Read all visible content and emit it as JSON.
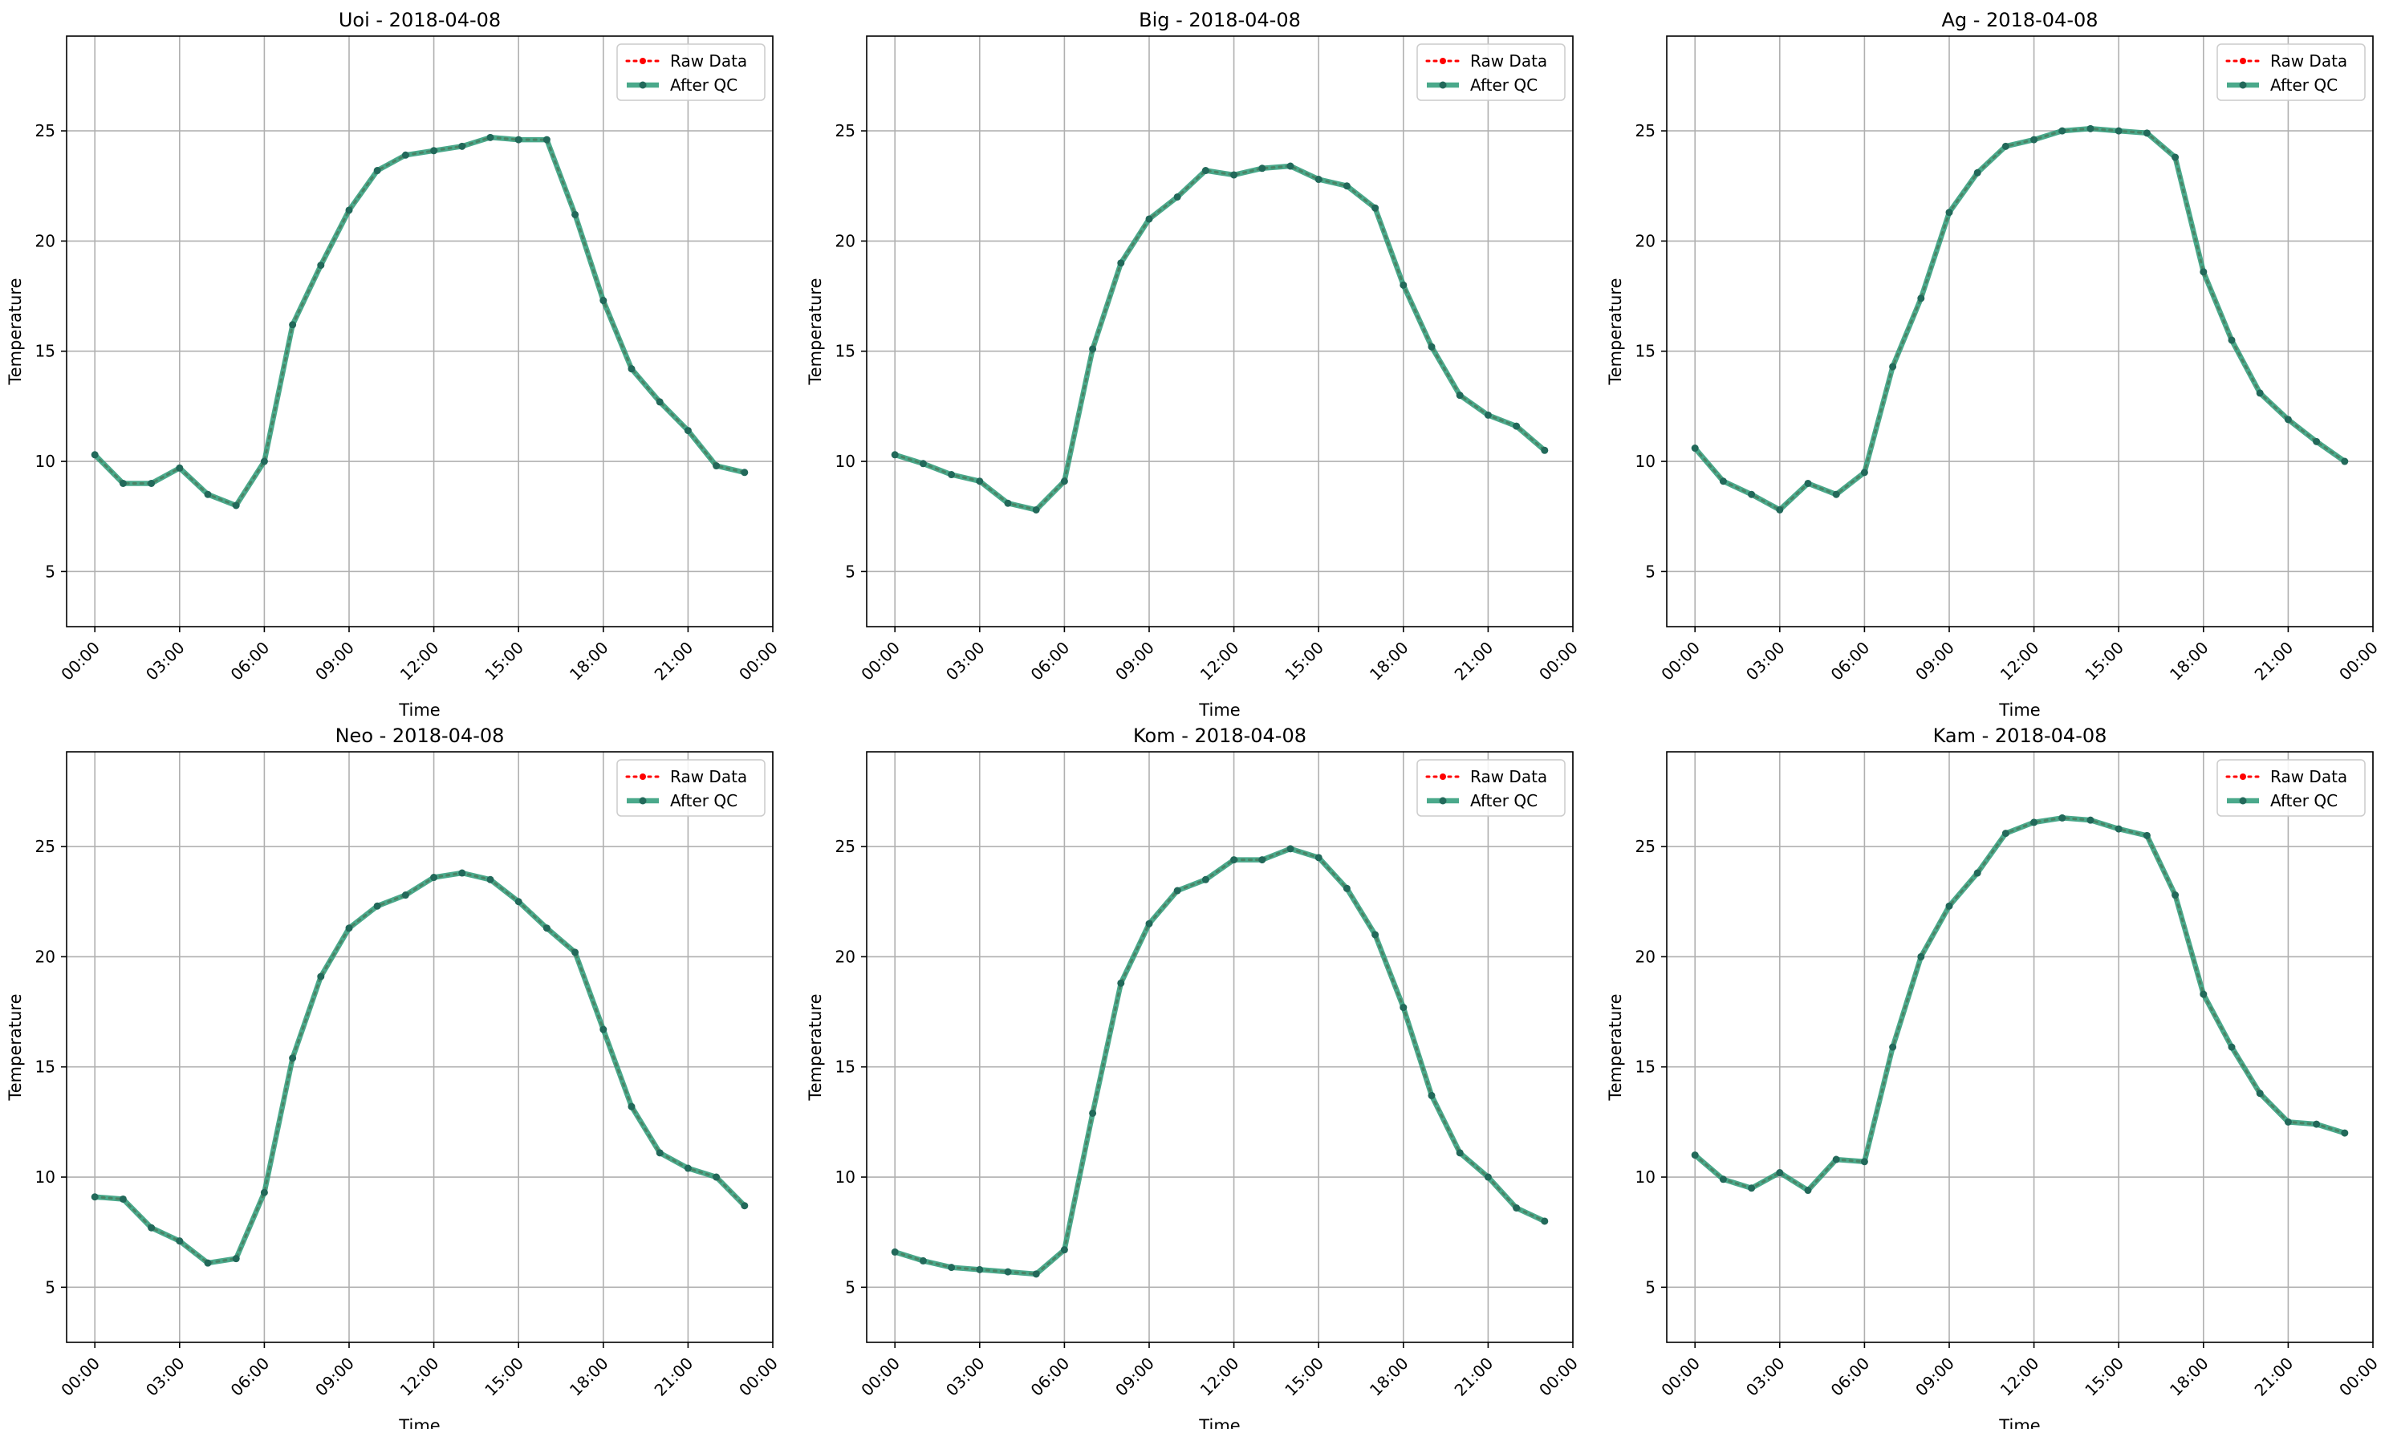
{
  "figure": {
    "background": "#ffffff"
  },
  "style": {
    "raw_color": "#ff0000",
    "qc_color": "#2a9a77",
    "qc_marker_color": "#22695a",
    "grid_color": "#b0b0b0"
  },
  "chart_data": [
    {
      "type": "line",
      "title": "Uoi - 2018-04-08",
      "xlabel": "Time",
      "ylabel": "Temperature",
      "ylim": [
        2.5,
        29.3
      ],
      "xlim": [
        -1.0,
        24.0
      ],
      "yticks": [
        5,
        10,
        15,
        20,
        25
      ],
      "xticks": [
        "00:00",
        "03:00",
        "06:00",
        "09:00",
        "12:00",
        "15:00",
        "18:00",
        "21:00",
        "00:00"
      ],
      "grid": true,
      "legend": "top-right",
      "x_hours": [
        0,
        1,
        2,
        3,
        4,
        5,
        6,
        7,
        8,
        9,
        10,
        11,
        12,
        13,
        14,
        15,
        16,
        17,
        18,
        19,
        20,
        21,
        22,
        23
      ],
      "series": [
        {
          "name": "Raw Data",
          "values": [
            10.3,
            9.0,
            9.0,
            9.7,
            8.5,
            8.0,
            10.0,
            16.2,
            18.9,
            21.4,
            23.2,
            23.9,
            24.1,
            24.3,
            24.7,
            24.6,
            24.6,
            21.2,
            17.3,
            14.2,
            12.7,
            11.4,
            9.8,
            9.5
          ]
        },
        {
          "name": "After QC",
          "values": [
            10.3,
            9.0,
            9.0,
            9.7,
            8.5,
            8.0,
            10.0,
            16.2,
            18.9,
            21.4,
            23.2,
            23.9,
            24.1,
            24.3,
            24.7,
            24.6,
            24.6,
            21.2,
            17.3,
            14.2,
            12.7,
            11.4,
            9.8,
            9.5
          ]
        }
      ]
    },
    {
      "type": "line",
      "title": "Big - 2018-04-08",
      "xlabel": "Time",
      "ylabel": "Temperature",
      "ylim": [
        2.5,
        29.3
      ],
      "xlim": [
        -1.0,
        24.0
      ],
      "yticks": [
        5,
        10,
        15,
        20,
        25
      ],
      "xticks": [
        "00:00",
        "03:00",
        "06:00",
        "09:00",
        "12:00",
        "15:00",
        "18:00",
        "21:00",
        "00:00"
      ],
      "grid": true,
      "legend": "top-right",
      "x_hours": [
        0,
        1,
        2,
        3,
        4,
        5,
        6,
        7,
        8,
        9,
        10,
        11,
        12,
        13,
        14,
        15,
        16,
        17,
        18,
        19,
        20,
        21,
        22,
        23
      ],
      "series": [
        {
          "name": "Raw Data",
          "values": [
            10.3,
            9.9,
            9.4,
            9.1,
            8.1,
            7.8,
            9.1,
            15.1,
            19.0,
            21.0,
            22.0,
            23.2,
            23.0,
            23.3,
            23.4,
            22.8,
            22.5,
            21.5,
            18.0,
            15.2,
            13.0,
            12.1,
            11.6,
            10.5
          ]
        },
        {
          "name": "After QC",
          "values": [
            10.3,
            9.9,
            9.4,
            9.1,
            8.1,
            7.8,
            9.1,
            15.1,
            19.0,
            21.0,
            22.0,
            23.2,
            23.0,
            23.3,
            23.4,
            22.8,
            22.5,
            21.5,
            18.0,
            15.2,
            13.0,
            12.1,
            11.6,
            10.5
          ]
        }
      ]
    },
    {
      "type": "line",
      "title": "Ag - 2018-04-08",
      "xlabel": "Time",
      "ylabel": "Temperature",
      "ylim": [
        2.5,
        29.3
      ],
      "xlim": [
        -1.0,
        24.0
      ],
      "yticks": [
        5,
        10,
        15,
        20,
        25
      ],
      "xticks": [
        "00:00",
        "03:00",
        "06:00",
        "09:00",
        "12:00",
        "15:00",
        "18:00",
        "21:00",
        "00:00"
      ],
      "grid": true,
      "legend": "top-right",
      "x_hours": [
        0,
        1,
        2,
        3,
        4,
        5,
        6,
        7,
        8,
        9,
        10,
        11,
        12,
        13,
        14,
        15,
        16,
        17,
        18,
        19,
        20,
        21,
        22,
        23
      ],
      "series": [
        {
          "name": "Raw Data",
          "values": [
            10.6,
            9.1,
            8.5,
            7.8,
            9.0,
            8.5,
            9.5,
            14.3,
            17.4,
            21.3,
            23.1,
            24.3,
            24.6,
            25.0,
            25.1,
            25.0,
            24.9,
            23.8,
            18.6,
            15.5,
            13.1,
            11.9,
            10.9,
            10.0
          ]
        },
        {
          "name": "After QC",
          "values": [
            10.6,
            9.1,
            8.5,
            7.8,
            9.0,
            8.5,
            9.5,
            14.3,
            17.4,
            21.3,
            23.1,
            24.3,
            24.6,
            25.0,
            25.1,
            25.0,
            24.9,
            23.8,
            18.6,
            15.5,
            13.1,
            11.9,
            10.9,
            10.0
          ]
        }
      ]
    },
    {
      "type": "line",
      "title": "Neo - 2018-04-08",
      "xlabel": "Time",
      "ylabel": "Temperature",
      "ylim": [
        2.5,
        29.3
      ],
      "xlim": [
        -1.0,
        24.0
      ],
      "yticks": [
        5,
        10,
        15,
        20,
        25
      ],
      "xticks": [
        "00:00",
        "03:00",
        "06:00",
        "09:00",
        "12:00",
        "15:00",
        "18:00",
        "21:00",
        "00:00"
      ],
      "grid": true,
      "legend": "top-right",
      "x_hours": [
        0,
        1,
        2,
        3,
        4,
        5,
        6,
        7,
        8,
        9,
        10,
        11,
        12,
        13,
        14,
        15,
        16,
        17,
        18,
        19,
        20,
        21,
        22,
        23
      ],
      "series": [
        {
          "name": "Raw Data",
          "values": [
            9.1,
            9.0,
            7.7,
            7.1,
            6.1,
            6.3,
            9.3,
            15.4,
            19.1,
            21.3,
            22.3,
            22.8,
            23.6,
            23.8,
            23.5,
            22.5,
            21.3,
            20.2,
            16.7,
            13.2,
            11.1,
            10.4,
            10.0,
            8.7
          ]
        },
        {
          "name": "After QC",
          "values": [
            9.1,
            9.0,
            7.7,
            7.1,
            6.1,
            6.3,
            9.3,
            15.4,
            19.1,
            21.3,
            22.3,
            22.8,
            23.6,
            23.8,
            23.5,
            22.5,
            21.3,
            20.2,
            16.7,
            13.2,
            11.1,
            10.4,
            10.0,
            8.7
          ]
        }
      ]
    },
    {
      "type": "line",
      "title": "Kom - 2018-04-08",
      "xlabel": "Time",
      "ylabel": "Temperature",
      "ylim": [
        2.5,
        29.3
      ],
      "xlim": [
        -1.0,
        24.0
      ],
      "yticks": [
        5,
        10,
        15,
        20,
        25
      ],
      "xticks": [
        "00:00",
        "03:00",
        "06:00",
        "09:00",
        "12:00",
        "15:00",
        "18:00",
        "21:00",
        "00:00"
      ],
      "grid": true,
      "legend": "top-right",
      "x_hours": [
        0,
        1,
        2,
        3,
        4,
        5,
        6,
        7,
        8,
        9,
        10,
        11,
        12,
        13,
        14,
        15,
        16,
        17,
        18,
        19,
        20,
        21,
        22,
        23
      ],
      "series": [
        {
          "name": "Raw Data",
          "values": [
            6.6,
            6.2,
            5.9,
            5.8,
            5.7,
            5.6,
            6.7,
            12.9,
            18.8,
            21.5,
            23.0,
            23.5,
            24.4,
            24.4,
            24.9,
            24.5,
            23.1,
            21.0,
            17.7,
            13.7,
            11.1,
            10.0,
            8.6,
            8.0
          ]
        },
        {
          "name": "After QC",
          "values": [
            6.6,
            6.2,
            5.9,
            5.8,
            5.7,
            5.6,
            6.7,
            12.9,
            18.8,
            21.5,
            23.0,
            23.5,
            24.4,
            24.4,
            24.9,
            24.5,
            23.1,
            21.0,
            17.7,
            13.7,
            11.1,
            10.0,
            8.6,
            8.0
          ]
        }
      ]
    },
    {
      "type": "line",
      "title": "Kam - 2018-04-08",
      "xlabel": "Time",
      "ylabel": "Temperature",
      "ylim": [
        2.5,
        29.3
      ],
      "xlim": [
        -1.0,
        24.0
      ],
      "yticks": [
        5,
        10,
        15,
        20,
        25
      ],
      "xticks": [
        "00:00",
        "03:00",
        "06:00",
        "09:00",
        "12:00",
        "15:00",
        "18:00",
        "21:00",
        "00:00"
      ],
      "grid": true,
      "legend": "top-right",
      "x_hours": [
        0,
        1,
        2,
        3,
        4,
        5,
        6,
        7,
        8,
        9,
        10,
        11,
        12,
        13,
        14,
        15,
        16,
        17,
        18,
        19,
        20,
        21,
        22,
        23
      ],
      "series": [
        {
          "name": "Raw Data",
          "values": [
            11.0,
            9.9,
            9.5,
            10.2,
            9.4,
            10.8,
            10.7,
            15.9,
            20.0,
            22.3,
            23.8,
            25.6,
            26.1,
            26.3,
            26.2,
            25.8,
            25.5,
            22.8,
            18.3,
            15.9,
            13.8,
            12.5,
            12.4,
            12.0
          ]
        },
        {
          "name": "After QC",
          "values": [
            11.0,
            9.9,
            9.5,
            10.2,
            9.4,
            10.8,
            10.7,
            15.9,
            20.0,
            22.3,
            23.8,
            25.6,
            26.1,
            26.3,
            26.2,
            25.8,
            25.5,
            22.8,
            18.3,
            15.9,
            13.8,
            12.5,
            12.4,
            12.0
          ]
        }
      ]
    }
  ]
}
